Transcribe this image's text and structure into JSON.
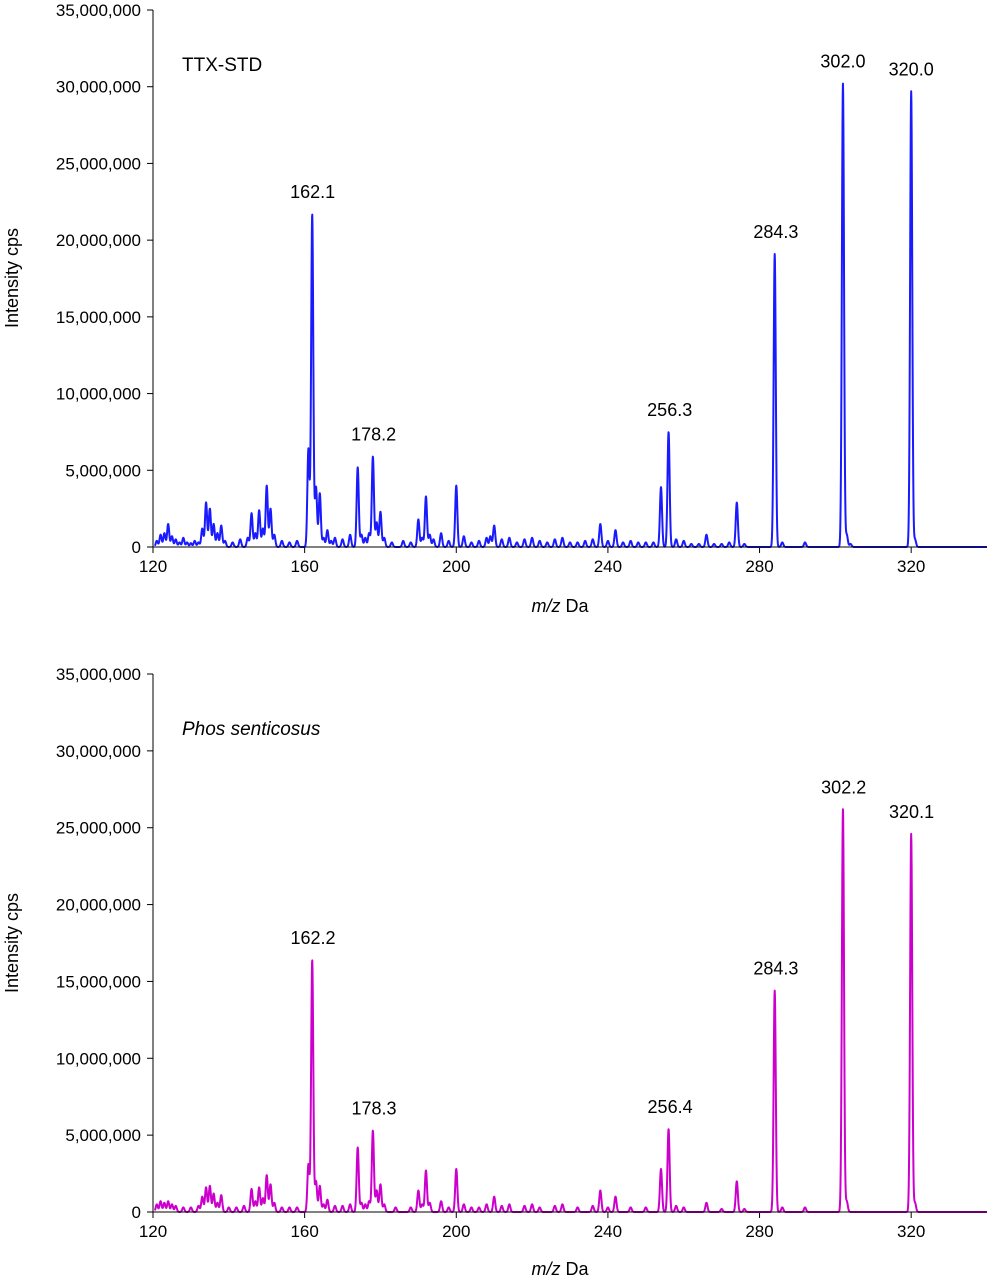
{
  "chart_data": [
    {
      "type": "line",
      "title": "TTX-STD",
      "title_italic": false,
      "xlabel_italic": "m/z",
      "xlabel_rest": " Da",
      "ylabel": "Intensity cps",
      "xlim": [
        120,
        340
      ],
      "ylim": [
        0,
        35000000
      ],
      "xticks": [
        120,
        160,
        200,
        240,
        280,
        320
      ],
      "yticks": [
        0,
        5000000,
        10000000,
        15000000,
        20000000,
        25000000,
        30000000,
        35000000
      ],
      "ytick_labels": [
        "0",
        "5,000,000",
        "10,000,000",
        "15,000,000",
        "20,000,000",
        "25,000,000",
        "30,000,000",
        "35,000,000"
      ],
      "xtick_labels": [
        "120",
        "160",
        "200",
        "240",
        "280",
        "320"
      ],
      "color": "#1a1aff",
      "grid": false,
      "peaks": [
        [
          121,
          400000
        ],
        [
          122,
          800000
        ],
        [
          123,
          900000
        ],
        [
          124,
          1500000
        ],
        [
          125,
          700000
        ],
        [
          126,
          500000
        ],
        [
          127,
          300000
        ],
        [
          128,
          600000
        ],
        [
          129,
          300000
        ],
        [
          130,
          250000
        ],
        [
          131,
          400000
        ],
        [
          132,
          300000
        ],
        [
          133,
          1200000
        ],
        [
          134,
          2900000
        ],
        [
          135,
          2500000
        ],
        [
          136,
          1500000
        ],
        [
          137,
          900000
        ],
        [
          138,
          1400000
        ],
        [
          139,
          400000
        ],
        [
          141,
          300000
        ],
        [
          143,
          500000
        ],
        [
          145,
          600000
        ],
        [
          146,
          2200000
        ],
        [
          147,
          900000
        ],
        [
          148,
          2400000
        ],
        [
          149,
          1200000
        ],
        [
          150,
          4000000
        ],
        [
          151,
          2500000
        ],
        [
          152,
          800000
        ],
        [
          154,
          400000
        ],
        [
          156,
          300000
        ],
        [
          158,
          400000
        ],
        [
          161,
          6400000
        ],
        [
          162,
          21700000
        ],
        [
          163,
          3900000
        ],
        [
          164,
          3500000
        ],
        [
          165,
          600000
        ],
        [
          166,
          1100000
        ],
        [
          167,
          400000
        ],
        [
          168,
          600000
        ],
        [
          170,
          500000
        ],
        [
          172,
          800000
        ],
        [
          174,
          5200000
        ],
        [
          175,
          800000
        ],
        [
          176,
          600000
        ],
        [
          177,
          900000
        ],
        [
          178,
          5900000
        ],
        [
          179,
          1600000
        ],
        [
          180,
          2300000
        ],
        [
          181,
          600000
        ],
        [
          183,
          300000
        ],
        [
          186,
          400000
        ],
        [
          188,
          300000
        ],
        [
          190,
          1800000
        ],
        [
          191,
          600000
        ],
        [
          192,
          3300000
        ],
        [
          193,
          800000
        ],
        [
          194,
          500000
        ],
        [
          196,
          900000
        ],
        [
          198,
          400000
        ],
        [
          200,
          4000000
        ],
        [
          202,
          700000
        ],
        [
          204,
          300000
        ],
        [
          206,
          400000
        ],
        [
          208,
          600000
        ],
        [
          209,
          700000
        ],
        [
          210,
          1400000
        ],
        [
          212,
          500000
        ],
        [
          214,
          600000
        ],
        [
          216,
          300000
        ],
        [
          218,
          500000
        ],
        [
          220,
          600000
        ],
        [
          222,
          400000
        ],
        [
          224,
          300000
        ],
        [
          226,
          500000
        ],
        [
          228,
          600000
        ],
        [
          230,
          300000
        ],
        [
          232,
          300000
        ],
        [
          234,
          400000
        ],
        [
          236,
          500000
        ],
        [
          238,
          1500000
        ],
        [
          240,
          400000
        ],
        [
          242,
          1100000
        ],
        [
          244,
          300000
        ],
        [
          246,
          400000
        ],
        [
          248,
          300000
        ],
        [
          250,
          300000
        ],
        [
          252,
          300000
        ],
        [
          254,
          3900000
        ],
        [
          256,
          7500000
        ],
        [
          258,
          500000
        ],
        [
          260,
          400000
        ],
        [
          262,
          200000
        ],
        [
          264,
          200000
        ],
        [
          266,
          800000
        ],
        [
          268,
          200000
        ],
        [
          270,
          200000
        ],
        [
          272,
          300000
        ],
        [
          274,
          2900000
        ],
        [
          276,
          200000
        ],
        [
          284,
          19100000
        ],
        [
          286,
          300000
        ],
        [
          292,
          300000
        ],
        [
          302,
          30200000
        ],
        [
          303,
          800000
        ],
        [
          304,
          200000
        ],
        [
          320,
          29700000
        ],
        [
          321,
          500000
        ]
      ],
      "labels": [
        {
          "x": 162.1,
          "y": 21700000,
          "text": "162.1"
        },
        {
          "x": 178.2,
          "y": 5900000,
          "text": "178.2"
        },
        {
          "x": 256.3,
          "y": 7500000,
          "text": "256.3"
        },
        {
          "x": 284.3,
          "y": 19100000,
          "text": "284.3"
        },
        {
          "x": 302.0,
          "y": 30200000,
          "text": "302.0"
        },
        {
          "x": 320.0,
          "y": 29700000,
          "text": "320.0"
        }
      ]
    },
    {
      "type": "line",
      "title": "Phos senticosus",
      "title_italic": true,
      "xlabel_italic": "m/z",
      "xlabel_rest": " Da",
      "ylabel": "Intensity cps",
      "xlim": [
        120,
        340
      ],
      "ylim": [
        0,
        35000000
      ],
      "xticks": [
        120,
        160,
        200,
        240,
        280,
        320
      ],
      "yticks": [
        0,
        5000000,
        10000000,
        15000000,
        20000000,
        25000000,
        30000000,
        35000000
      ],
      "ytick_labels": [
        "0",
        "5,000,000",
        "10,000,000",
        "15,000,000",
        "20,000,000",
        "25,000,000",
        "30,000,000",
        "35,000,000"
      ],
      "xtick_labels": [
        "120",
        "160",
        "200",
        "240",
        "280",
        "320"
      ],
      "color": "#cc00cc",
      "grid": false,
      "peaks": [
        [
          121,
          500000
        ],
        [
          122,
          700000
        ],
        [
          123,
          600000
        ],
        [
          124,
          700000
        ],
        [
          125,
          500000
        ],
        [
          126,
          400000
        ],
        [
          128,
          300000
        ],
        [
          130,
          300000
        ],
        [
          132,
          400000
        ],
        [
          133,
          1000000
        ],
        [
          134,
          1600000
        ],
        [
          135,
          1700000
        ],
        [
          136,
          1200000
        ],
        [
          137,
          600000
        ],
        [
          138,
          1100000
        ],
        [
          140,
          300000
        ],
        [
          142,
          300000
        ],
        [
          144,
          400000
        ],
        [
          146,
          1500000
        ],
        [
          147,
          700000
        ],
        [
          148,
          1600000
        ],
        [
          149,
          900000
        ],
        [
          150,
          2400000
        ],
        [
          151,
          1800000
        ],
        [
          152,
          600000
        ],
        [
          154,
          300000
        ],
        [
          156,
          300000
        ],
        [
          158,
          300000
        ],
        [
          161,
          3100000
        ],
        [
          162,
          16400000
        ],
        [
          163,
          2000000
        ],
        [
          164,
          1700000
        ],
        [
          165,
          500000
        ],
        [
          166,
          800000
        ],
        [
          168,
          400000
        ],
        [
          170,
          400000
        ],
        [
          172,
          500000
        ],
        [
          174,
          4200000
        ],
        [
          175,
          600000
        ],
        [
          176,
          500000
        ],
        [
          177,
          700000
        ],
        [
          178,
          5300000
        ],
        [
          179,
          1400000
        ],
        [
          180,
          1800000
        ],
        [
          181,
          500000
        ],
        [
          184,
          300000
        ],
        [
          188,
          300000
        ],
        [
          190,
          1400000
        ],
        [
          191,
          500000
        ],
        [
          192,
          2700000
        ],
        [
          193,
          600000
        ],
        [
          196,
          700000
        ],
        [
          198,
          300000
        ],
        [
          200,
          2800000
        ],
        [
          202,
          500000
        ],
        [
          204,
          300000
        ],
        [
          206,
          300000
        ],
        [
          208,
          500000
        ],
        [
          210,
          1000000
        ],
        [
          212,
          400000
        ],
        [
          214,
          500000
        ],
        [
          218,
          400000
        ],
        [
          220,
          500000
        ],
        [
          222,
          300000
        ],
        [
          226,
          400000
        ],
        [
          228,
          500000
        ],
        [
          232,
          300000
        ],
        [
          236,
          400000
        ],
        [
          238,
          1400000
        ],
        [
          240,
          300000
        ],
        [
          242,
          1000000
        ],
        [
          246,
          300000
        ],
        [
          250,
          300000
        ],
        [
          254,
          2800000
        ],
        [
          256,
          5400000
        ],
        [
          258,
          400000
        ],
        [
          260,
          300000
        ],
        [
          266,
          600000
        ],
        [
          270,
          200000
        ],
        [
          274,
          2000000
        ],
        [
          276,
          200000
        ],
        [
          284,
          14400000
        ],
        [
          286,
          300000
        ],
        [
          292,
          300000
        ],
        [
          302,
          26200000
        ],
        [
          303,
          700000
        ],
        [
          320,
          24600000
        ],
        [
          321,
          600000
        ]
      ],
      "labels": [
        {
          "x": 162.2,
          "y": 16400000,
          "text": "162.2"
        },
        {
          "x": 178.3,
          "y": 5300000,
          "text": "178.3"
        },
        {
          "x": 256.4,
          "y": 5400000,
          "text": "256.4"
        },
        {
          "x": 284.3,
          "y": 14400000,
          "text": "284.3"
        },
        {
          "x": 302.2,
          "y": 26200000,
          "text": "302.2"
        },
        {
          "x": 320.1,
          "y": 24600000,
          "text": "320.1"
        }
      ]
    }
  ]
}
